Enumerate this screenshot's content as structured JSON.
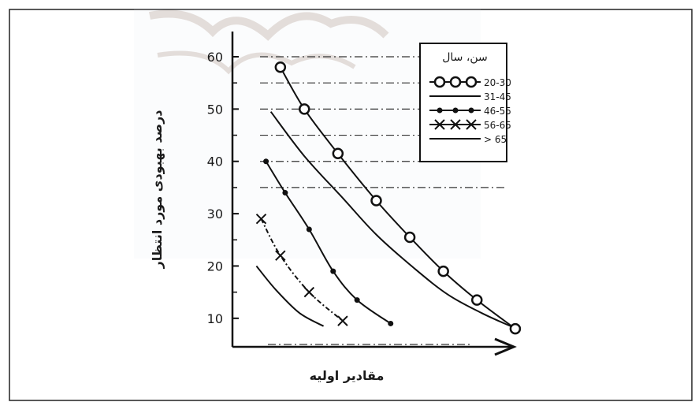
{
  "chart_data": {
    "type": "line",
    "title": "",
    "xlabel": "مقادیر اولیه",
    "ylabel": "درصد بهبودی مورد انتظار",
    "ylim": [
      5,
      60
    ],
    "yticks": [
      10,
      20,
      30,
      40,
      50,
      60
    ],
    "ytick_labels": [
      "10",
      "20",
      "30",
      "40",
      "50",
      "60"
    ],
    "grid": false,
    "legend": {
      "title": "سن، سال",
      "placement": "top-right"
    },
    "series": [
      {
        "name": "20-30",
        "marker": "circle",
        "points": [
          [
            1.0,
            58
          ],
          [
            1.5,
            50
          ],
          [
            2.2,
            41.5
          ],
          [
            3.0,
            32.5
          ],
          [
            3.7,
            25.5
          ],
          [
            4.4,
            19
          ],
          [
            5.1,
            13.5
          ],
          [
            5.9,
            8
          ]
        ]
      },
      {
        "name": "31-45",
        "marker": "none",
        "points": [
          [
            0.8,
            49.5
          ],
          [
            1.5,
            41
          ],
          [
            2.3,
            33
          ],
          [
            3.0,
            26
          ],
          [
            3.8,
            19.5
          ],
          [
            4.5,
            14.5
          ],
          [
            5.2,
            11
          ],
          [
            5.8,
            8.5
          ]
        ]
      },
      {
        "name": "46-55",
        "marker": "dot",
        "points": [
          [
            0.7,
            40
          ],
          [
            1.1,
            34
          ],
          [
            1.6,
            27
          ],
          [
            2.1,
            19
          ],
          [
            2.6,
            13.5
          ],
          [
            3.3,
            9
          ]
        ]
      },
      {
        "name": "56-65",
        "marker": "x",
        "points": [
          [
            0.6,
            29
          ],
          [
            1.0,
            22
          ],
          [
            1.6,
            15
          ],
          [
            2.3,
            9.5
          ]
        ]
      },
      {
        "name": "> 65",
        "marker": "none",
        "points": [
          [
            0.5,
            20
          ],
          [
            0.9,
            15.5
          ],
          [
            1.4,
            11
          ],
          [
            1.9,
            8.5
          ]
        ]
      }
    ],
    "reference_levels": [
      60,
      55,
      50,
      45,
      40,
      35,
      5
    ]
  }
}
